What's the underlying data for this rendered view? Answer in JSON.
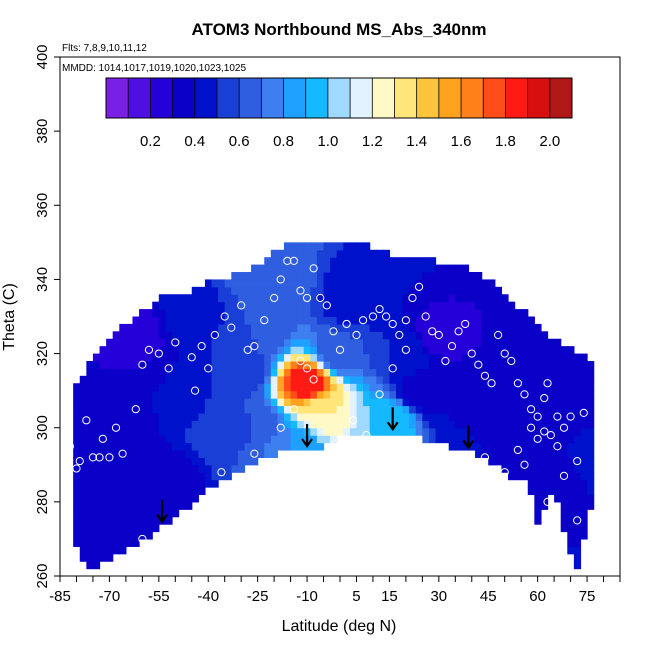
{
  "chart_data": {
    "type": "heatmap",
    "title": "ATOM3 Northbound MS_Abs_340nm",
    "subtitle_flights": "Flts: 7,8,9,10,11,12",
    "subtitle_dates": "MMDD: 1014,1017,1019,1020,1023,1025",
    "xlabel": "Latitude (deg N)",
    "ylabel": "Theta (C)",
    "xlim": [
      -85,
      85
    ],
    "ylim": [
      260,
      400
    ],
    "x_ticks": [
      -85,
      -70,
      -55,
      -40,
      -25,
      -10,
      5,
      15,
      30,
      45,
      60,
      75
    ],
    "x_tick_labels": [
      "-85",
      "-70",
      "-55",
      "-40",
      "-25",
      "-10",
      "5",
      "15",
      "30",
      "45",
      "60",
      "75"
    ],
    "y_ticks": [
      260,
      280,
      300,
      320,
      340,
      360,
      380,
      400
    ],
    "y_tick_labels": [
      "260",
      "280",
      "300",
      "320",
      "340",
      "360",
      "380",
      "400"
    ],
    "colorbar": {
      "range": [
        0.0,
        2.1
      ],
      "ticks": [
        0.2,
        0.4,
        0.6,
        0.8,
        1.0,
        1.2,
        1.4,
        1.6,
        1.8,
        2.0
      ],
      "tick_labels": [
        "0.2",
        "0.4",
        "0.6",
        "0.8",
        "1.0",
        "1.2",
        "1.4",
        "1.6",
        "1.8",
        "2.0"
      ],
      "colors": [
        "#7a1fe6",
        "#4d10e0",
        "#2600d8",
        "#0a00c8",
        "#0011cc",
        "#1a3fd6",
        "#2f5fe0",
        "#3d7ef0",
        "#1ea0ff",
        "#15b9ff",
        "#9fd9ff",
        "#e2f3ff",
        "#fff9c8",
        "#ffe57a",
        "#ffc43d",
        "#ffa31f",
        "#ff7f19",
        "#ff4d19",
        "#ff1a14",
        "#d80f0f",
        "#b01818"
      ]
    },
    "cells": [
      {
        "lat": -77,
        "theta": 285,
        "value": 0.3
      },
      {
        "lat": -70,
        "theta": 300,
        "value": 0.35
      },
      {
        "lat": -62,
        "theta": 325,
        "value": 0.25
      },
      {
        "lat": -55,
        "theta": 285,
        "value": 0.3
      },
      {
        "lat": -50,
        "theta": 310,
        "value": 0.4
      },
      {
        "lat": -45,
        "theta": 330,
        "value": 0.45
      },
      {
        "lat": -35,
        "theta": 300,
        "value": 0.55
      },
      {
        "lat": -30,
        "theta": 315,
        "value": 0.5
      },
      {
        "lat": -25,
        "theta": 325,
        "value": 0.6
      },
      {
        "lat": -25,
        "theta": 300,
        "value": 0.6
      },
      {
        "lat": -20,
        "theta": 340,
        "value": 0.7
      },
      {
        "lat": -15,
        "theta": 295,
        "value": 0.8
      },
      {
        "lat": -10,
        "theta": 312,
        "value": 1.9
      },
      {
        "lat": -5,
        "theta": 305,
        "value": 1.3
      },
      {
        "lat": 0,
        "theta": 320,
        "value": 0.6
      },
      {
        "lat": 5,
        "theta": 335,
        "value": 0.4
      },
      {
        "lat": 15,
        "theta": 302,
        "value": 1.0
      },
      {
        "lat": 20,
        "theta": 320,
        "value": 0.5
      },
      {
        "lat": 25,
        "theta": 310,
        "value": 0.3
      },
      {
        "lat": 30,
        "theta": 325,
        "value": 0.25
      },
      {
        "lat": 38,
        "theta": 300,
        "value": 0.4
      },
      {
        "lat": 45,
        "theta": 310,
        "value": 0.3
      },
      {
        "lat": 55,
        "theta": 300,
        "value": 0.4
      },
      {
        "lat": 62,
        "theta": 290,
        "value": 0.35
      },
      {
        "lat": 70,
        "theta": 305,
        "value": 0.3
      },
      {
        "lat": 78,
        "theta": 295,
        "value": 0.45
      }
    ],
    "boundary": {
      "upper": [
        [
          -80,
          311
        ],
        [
          -76,
          318
        ],
        [
          -72,
          322
        ],
        [
          -68,
          326
        ],
        [
          -62,
          330
        ],
        [
          -55,
          335
        ],
        [
          -48,
          336
        ],
        [
          -40,
          339
        ],
        [
          -32,
          341
        ],
        [
          -25,
          344
        ],
        [
          -20,
          348
        ],
        [
          -15,
          350
        ],
        [
          -10,
          350
        ],
        [
          -5,
          350
        ],
        [
          5,
          350
        ],
        [
          15,
          347
        ],
        [
          25,
          346
        ],
        [
          32,
          344
        ],
        [
          40,
          343
        ],
        [
          48,
          338
        ],
        [
          55,
          332
        ],
        [
          62,
          326
        ],
        [
          68,
          323
        ],
        [
          72,
          321
        ],
        [
          76,
          318
        ],
        [
          78,
          310
        ]
      ],
      "lower": [
        [
          78,
          284
        ],
        [
          75,
          275
        ],
        [
          72,
          261
        ],
        [
          68,
          272
        ],
        [
          65,
          284
        ],
        [
          60,
          274
        ],
        [
          57,
          287
        ],
        [
          53,
          285
        ],
        [
          48,
          290
        ],
        [
          45,
          291
        ],
        [
          38,
          294
        ],
        [
          30,
          296
        ],
        [
          20,
          298
        ],
        [
          12,
          299
        ],
        [
          8,
          298
        ],
        [
          2,
          298
        ],
        [
          -4,
          295
        ],
        [
          -10,
          294
        ],
        [
          -18,
          293
        ],
        [
          -25,
          291
        ],
        [
          -32,
          287
        ],
        [
          -40,
          283
        ],
        [
          -48,
          277
        ],
        [
          -55,
          273
        ],
        [
          -62,
          268
        ],
        [
          -68,
          265
        ],
        [
          -72,
          263
        ],
        [
          -76,
          261
        ],
        [
          -80,
          268
        ]
      ]
    },
    "arrows_lat": [
      -54,
      -10,
      16,
      39
    ],
    "points": [
      [
        -79,
        291
      ],
      [
        -77,
        302
      ],
      [
        -75,
        292
      ],
      [
        -73,
        292
      ],
      [
        -72,
        297
      ],
      [
        -70,
        292
      ],
      [
        -68,
        300
      ],
      [
        -66,
        293
      ],
      [
        -62,
        305
      ],
      [
        -60,
        317
      ],
      [
        -58,
        321
      ],
      [
        -55,
        320
      ],
      [
        -52,
        316
      ],
      [
        -50,
        323
      ],
      [
        -45,
        319
      ],
      [
        -44,
        310
      ],
      [
        -42,
        322
      ],
      [
        -40,
        316
      ],
      [
        -38,
        325
      ],
      [
        -35,
        330
      ],
      [
        -33,
        327
      ],
      [
        -30,
        333
      ],
      [
        -28,
        321
      ],
      [
        -26,
        322
      ],
      [
        -23,
        329
      ],
      [
        -20,
        335
      ],
      [
        -18,
        340
      ],
      [
        -16,
        345
      ],
      [
        -14,
        345
      ],
      [
        -12,
        337
      ],
      [
        -10,
        335
      ],
      [
        -8,
        343
      ],
      [
        -6,
        335
      ],
      [
        -4,
        333
      ],
      [
        -2,
        326
      ],
      [
        0,
        321
      ],
      [
        2,
        328
      ],
      [
        5,
        325
      ],
      [
        7,
        329
      ],
      [
        10,
        330
      ],
      [
        12,
        332
      ],
      [
        14,
        330
      ],
      [
        16,
        328
      ],
      [
        18,
        325
      ],
      [
        20,
        329
      ],
      [
        22,
        335
      ],
      [
        24,
        338
      ],
      [
        26,
        330
      ],
      [
        28,
        326
      ],
      [
        30,
        325
      ],
      [
        32,
        318
      ],
      [
        34,
        322
      ],
      [
        36,
        326
      ],
      [
        38,
        328
      ],
      [
        40,
        320
      ],
      [
        42,
        317
      ],
      [
        44,
        314
      ],
      [
        46,
        312
      ],
      [
        48,
        325
      ],
      [
        50,
        320
      ],
      [
        52,
        318
      ],
      [
        54,
        312
      ],
      [
        56,
        309
      ],
      [
        58,
        305
      ],
      [
        60,
        303
      ],
      [
        62,
        308
      ],
      [
        64,
        298
      ],
      [
        66,
        295
      ],
      [
        68,
        300
      ],
      [
        70,
        303
      ],
      [
        72,
        291
      ],
      [
        74,
        304
      ],
      [
        -10,
        316
      ],
      [
        -8,
        313
      ],
      [
        -12,
        318
      ],
      [
        4,
        302
      ],
      [
        8,
        298
      ],
      [
        12,
        309
      ],
      [
        16,
        316
      ],
      [
        20,
        321
      ],
      [
        -82,
        295
      ],
      [
        -80,
        289
      ],
      [
        -36,
        288
      ],
      [
        -26,
        293
      ],
      [
        -18,
        300
      ],
      [
        -14,
        305
      ],
      [
        44,
        292
      ],
      [
        56,
        290
      ],
      [
        60,
        297
      ],
      [
        62,
        299
      ],
      [
        66,
        303
      ],
      [
        68,
        287
      ],
      [
        72,
        275
      ],
      [
        50,
        288
      ],
      [
        54,
        294
      ],
      [
        58,
        300
      ],
      [
        63,
        280
      ],
      [
        63,
        312
      ],
      [
        -65,
        264
      ],
      [
        -60,
        270
      ]
    ]
  }
}
